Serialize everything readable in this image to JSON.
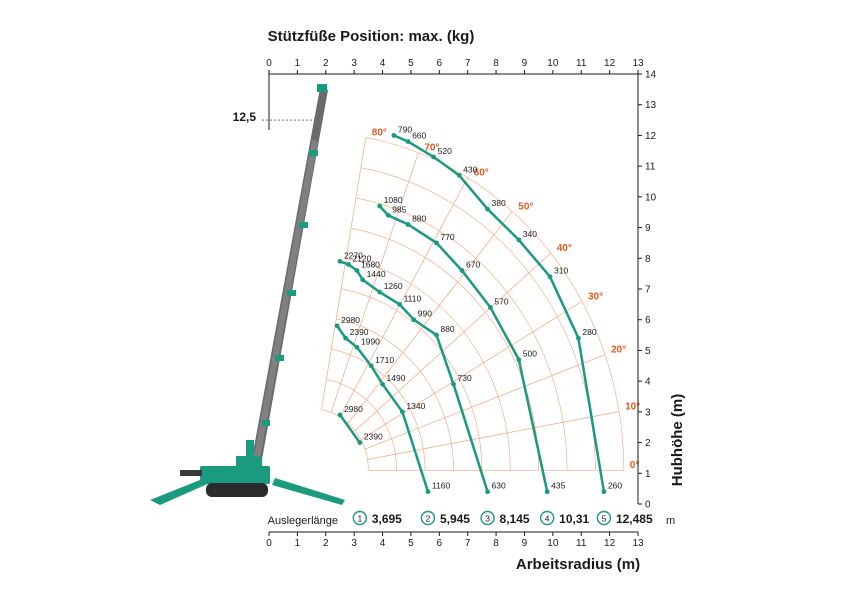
{
  "chart_data": {
    "type": "line",
    "title": "Stützfüße Position: max. (kg)",
    "xlabel": "Arbeitsradius (m)",
    "ylabel": "Hubhöhe (m)",
    "xlim": [
      0,
      13
    ],
    "ylim": [
      0,
      14
    ],
    "x_ticks": [
      "0",
      "1",
      "2",
      "3",
      "4",
      "5",
      "6",
      "7",
      "8",
      "9",
      "10",
      "11",
      "12",
      "13"
    ],
    "y_ticks": [
      "0",
      "1",
      "2",
      "3",
      "4",
      "5",
      "6",
      "7",
      "8",
      "9",
      "10",
      "11",
      "12",
      "13",
      "14"
    ],
    "max_height_label": "12,5",
    "boom_length_label": "Auslegerlänge",
    "boom_unit": "m",
    "angles": [
      "0°",
      "10°",
      "20°",
      "30°",
      "40°",
      "50°",
      "60°",
      "70°",
      "80°"
    ],
    "colors": {
      "curves": "#1a9a7e",
      "grid_lines": "#f2b08f",
      "angle_text": "#e05a1e",
      "crane": "#1a9a7e"
    },
    "series": [
      {
        "index": "1",
        "boom_length": "3,695",
        "points": [
          {
            "x": 3.2,
            "y": 2.0,
            "capacity": "2390"
          },
          {
            "x": 2.5,
            "y": 2.9,
            "capacity": "2980"
          }
        ]
      },
      {
        "index": "2",
        "boom_length": "5,945",
        "points": [
          {
            "x": 5.6,
            "y": 0.4,
            "capacity": "1160"
          },
          {
            "x": 4.7,
            "y": 3.0,
            "capacity": "1340"
          },
          {
            "x": 4.0,
            "y": 3.9,
            "capacity": "1490"
          },
          {
            "x": 3.6,
            "y": 4.5,
            "capacity": "1710"
          },
          {
            "x": 3.1,
            "y": 5.1,
            "capacity": "1990"
          },
          {
            "x": 2.7,
            "y": 5.4,
            "capacity": "2390"
          },
          {
            "x": 2.4,
            "y": 5.8,
            "capacity": "2980"
          }
        ]
      },
      {
        "index": "3",
        "boom_length": "8,145",
        "points": [
          {
            "x": 7.7,
            "y": 0.4,
            "capacity": "630"
          },
          {
            "x": 6.5,
            "y": 3.9,
            "capacity": "730"
          },
          {
            "x": 5.9,
            "y": 5.5,
            "capacity": "880"
          },
          {
            "x": 5.1,
            "y": 6.0,
            "capacity": "990"
          },
          {
            "x": 4.6,
            "y": 6.5,
            "capacity": "1110"
          },
          {
            "x": 3.9,
            "y": 6.9,
            "capacity": "1260"
          },
          {
            "x": 3.3,
            "y": 7.3,
            "capacity": "1440"
          },
          {
            "x": 3.1,
            "y": 7.6,
            "capacity": "1680"
          },
          {
            "x": 2.8,
            "y": 7.8,
            "capacity": "2120"
          },
          {
            "x": 2.5,
            "y": 7.9,
            "capacity": "2270"
          }
        ]
      },
      {
        "index": "4",
        "boom_length": "10,31",
        "points": [
          {
            "x": 9.8,
            "y": 0.4,
            "capacity": "435"
          },
          {
            "x": 8.8,
            "y": 4.7,
            "capacity": "500"
          },
          {
            "x": 7.8,
            "y": 6.4,
            "capacity": "570"
          },
          {
            "x": 6.8,
            "y": 7.6,
            "capacity": "670"
          },
          {
            "x": 5.9,
            "y": 8.5,
            "capacity": "770"
          },
          {
            "x": 4.9,
            "y": 9.1,
            "capacity": "880"
          },
          {
            "x": 4.2,
            "y": 9.4,
            "capacity": "985"
          },
          {
            "x": 3.9,
            "y": 9.7,
            "capacity": "1080"
          }
        ]
      },
      {
        "index": "5",
        "boom_length": "12,485",
        "points": [
          {
            "x": 11.8,
            "y": 0.4,
            "capacity": "260"
          },
          {
            "x": 10.9,
            "y": 5.4,
            "capacity": "280"
          },
          {
            "x": 9.9,
            "y": 7.4,
            "capacity": "310"
          },
          {
            "x": 8.8,
            "y": 8.6,
            "capacity": "340"
          },
          {
            "x": 7.7,
            "y": 9.6,
            "capacity": "380"
          },
          {
            "x": 6.7,
            "y": 10.7,
            "capacity": "430"
          },
          {
            "x": 5.8,
            "y": 11.3,
            "capacity": "520"
          },
          {
            "x": 4.9,
            "y": 11.8,
            "capacity": "660"
          },
          {
            "x": 4.4,
            "y": 12.0,
            "capacity": "790"
          }
        ]
      }
    ],
    "grid": true
  }
}
